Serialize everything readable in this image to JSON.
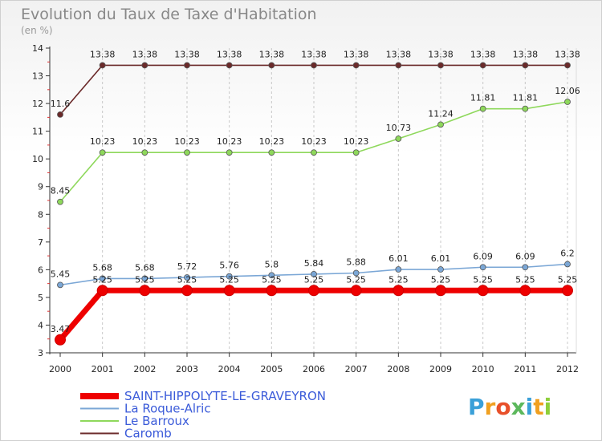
{
  "chart_data": {
    "type": "line",
    "title": "Evolution du Taux de Taxe d'Habitation",
    "subtitle": "(en %)",
    "xlabel": "",
    "ylabel": "",
    "x": [
      "2000",
      "2001",
      "2002",
      "2003",
      "2004",
      "2005",
      "2006",
      "2007",
      "2008",
      "2009",
      "2010",
      "2011",
      "2012"
    ],
    "ylim": [
      3,
      14
    ],
    "yticks": [
      "3",
      "4",
      "5",
      "6",
      "7",
      "8",
      "9",
      "10",
      "11",
      "12",
      "13",
      "14"
    ],
    "grid": "vertical dashed",
    "legend_position": "bottom-left",
    "series": [
      {
        "name": "Caromb",
        "color": "#6b2a2a",
        "values": [
          11.6,
          13.38,
          13.38,
          13.38,
          13.38,
          13.38,
          13.38,
          13.38,
          13.38,
          13.38,
          13.38,
          13.38,
          13.38
        ],
        "labels": [
          "11.6",
          "13.38",
          "13.38",
          "13.38",
          "13.38",
          "13.38",
          "13.38",
          "13.38",
          "13.38",
          "13.38",
          "13.38",
          "13.38",
          "13.38"
        ]
      },
      {
        "name": "Le Barroux",
        "color": "#8ed85b",
        "values": [
          8.45,
          10.23,
          10.23,
          10.23,
          10.23,
          10.23,
          10.23,
          10.23,
          10.73,
          11.24,
          11.81,
          11.81,
          12.06
        ],
        "labels": [
          "8.45",
          "10.23",
          "10.23",
          "10.23",
          "10.23",
          "10.23",
          "10.23",
          "10.23",
          "10.73",
          "11.24",
          "11.81",
          "11.81",
          "12.06"
        ]
      },
      {
        "name": "La Roque-Alric",
        "color": "#7ba7d6",
        "values": [
          5.45,
          5.68,
          5.68,
          5.72,
          5.76,
          5.8,
          5.84,
          5.88,
          6.01,
          6.01,
          6.09,
          6.09,
          6.2
        ],
        "labels": [
          "5.45",
          "5.68",
          "5.68",
          "5.72",
          "5.76",
          "5.8",
          "5.84",
          "5.88",
          "6.01",
          "6.01",
          "6.09",
          "6.09",
          "6.2"
        ]
      },
      {
        "name": "SAINT-HIPPOLYTE-LE-GRAVEYRON",
        "color": "#ee0000",
        "values": [
          3.47,
          5.25,
          5.25,
          5.25,
          5.25,
          5.25,
          5.25,
          5.25,
          5.25,
          5.25,
          5.25,
          5.25,
          5.25
        ],
        "labels": [
          "3.47",
          "5.25",
          "5.25",
          "5.25",
          "5.25",
          "5.25",
          "5.25",
          "5.25",
          "5.25",
          "5.25",
          "5.25",
          "5.25",
          "5.25"
        ]
      }
    ],
    "legend": [
      {
        "name": "SAINT-HIPPOLYTE-LE-GRAVEYRON",
        "color": "#ee0000",
        "text_color": "#3b5bd9"
      },
      {
        "name": "La Roque-Alric",
        "color": "#7ba7d6",
        "text_color": "#3b5bd9"
      },
      {
        "name": "Le Barroux",
        "color": "#8ed85b",
        "text_color": "#3b5bd9"
      },
      {
        "name": "Caromb",
        "color": "#6b2a2a",
        "text_color": "#3b5bd9"
      }
    ]
  },
  "logo": {
    "letters": [
      "P",
      "r",
      "o",
      "x",
      "i",
      "t",
      "i"
    ],
    "colors": [
      "#3aa0d8",
      "#f0a020",
      "#e8502a",
      "#5cb85c",
      "#3aa0d8",
      "#f0a020",
      "#8ecf3a"
    ]
  }
}
